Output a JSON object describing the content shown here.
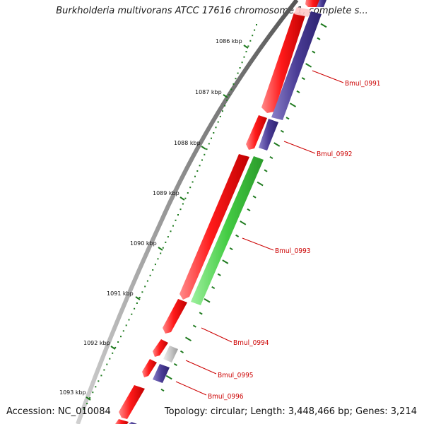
{
  "title": "Burkholderia multivorans ATCC 17616 chromosome 1, complete s...",
  "footer": {
    "accession": "Accession: NC_010084",
    "summary": "Topology: circular; Length: 3,448,466 bp; Genes: 3,214"
  },
  "colors": {
    "backbone": "#8a8a8a",
    "forward_cds": "#ff0000",
    "reverse_cds": "#4b3d96",
    "rna": "#44cc44",
    "other": "#c8c8c8",
    "tick": "#1e7a1e",
    "label": "#cc0000"
  },
  "kbp_ticks": [
    {
      "label": "1086 kbp"
    },
    {
      "label": "1087 kbp"
    },
    {
      "label": "1088 kbp"
    },
    {
      "label": "1089 kbp"
    },
    {
      "label": "1090 kbp"
    },
    {
      "label": "1091 kbp"
    },
    {
      "label": "1092 kbp"
    },
    {
      "label": "1093 kbp"
    }
  ],
  "gene_labels": [
    {
      "name": "Bmul_0991"
    },
    {
      "name": "Bmul_0992"
    },
    {
      "name": "Bmul_0993"
    },
    {
      "name": "Bmul_0994"
    },
    {
      "name": "Bmul_0995"
    },
    {
      "name": "Bmul_0996"
    }
  ]
}
